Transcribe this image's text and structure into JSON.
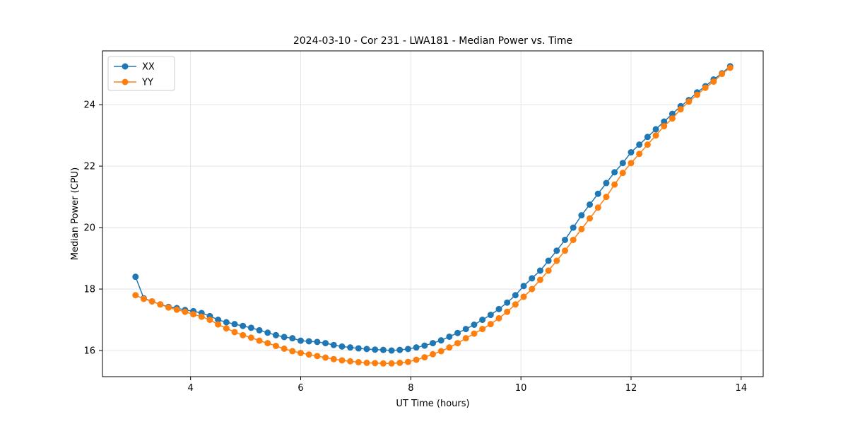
{
  "chart_data": {
    "type": "line",
    "title": "2024-03-10 - Cor 231 - LWA181 - Median Power vs. Time",
    "xlabel": "UT Time (hours)",
    "ylabel": "Median Power (CPU)",
    "xlim": [
      2.4,
      14.4
    ],
    "ylim": [
      15.15,
      25.75
    ],
    "xticks": [
      4,
      6,
      8,
      10,
      12,
      14
    ],
    "yticks": [
      16,
      18,
      20,
      22,
      24
    ],
    "grid": true,
    "legend_position": "upper left",
    "x": [
      3.0,
      3.15,
      3.3,
      3.45,
      3.6,
      3.75,
      3.9,
      4.05,
      4.2,
      4.35,
      4.5,
      4.65,
      4.8,
      4.95,
      5.1,
      5.25,
      5.4,
      5.55,
      5.7,
      5.85,
      6.0,
      6.15,
      6.3,
      6.45,
      6.6,
      6.75,
      6.9,
      7.05,
      7.2,
      7.35,
      7.5,
      7.65,
      7.8,
      7.95,
      8.1,
      8.25,
      8.4,
      8.55,
      8.7,
      8.85,
      9.0,
      9.15,
      9.3,
      9.45,
      9.6,
      9.75,
      9.9,
      10.05,
      10.2,
      10.35,
      10.5,
      10.65,
      10.8,
      10.95,
      11.1,
      11.25,
      11.4,
      11.55,
      11.7,
      11.85,
      12.0,
      12.15,
      12.3,
      12.45,
      12.6,
      12.75,
      12.9,
      13.05,
      13.2,
      13.35,
      13.5,
      13.65,
      13.8
    ],
    "series": [
      {
        "name": "XX",
        "color": "#1f77b4",
        "values": [
          18.4,
          17.7,
          17.6,
          17.5,
          17.42,
          17.38,
          17.32,
          17.28,
          17.22,
          17.12,
          17.0,
          16.92,
          16.86,
          16.8,
          16.74,
          16.66,
          16.58,
          16.5,
          16.44,
          16.4,
          16.32,
          16.3,
          16.28,
          16.24,
          16.18,
          16.13,
          16.1,
          16.07,
          16.05,
          16.03,
          16.02,
          16.0,
          16.02,
          16.05,
          16.1,
          16.16,
          16.24,
          16.33,
          16.45,
          16.57,
          16.7,
          16.84,
          17.0,
          17.16,
          17.35,
          17.56,
          17.8,
          18.1,
          18.35,
          18.6,
          18.92,
          19.25,
          19.6,
          20.0,
          20.4,
          20.75,
          21.1,
          21.45,
          21.8,
          22.1,
          22.45,
          22.7,
          22.95,
          23.2,
          23.45,
          23.7,
          23.95,
          24.15,
          24.4,
          24.6,
          24.82,
          25.02,
          25.25
        ]
      },
      {
        "name": "YY",
        "color": "#ff7f0e",
        "values": [
          17.8,
          17.68,
          17.6,
          17.5,
          17.4,
          17.33,
          17.26,
          17.18,
          17.1,
          17.0,
          16.85,
          16.72,
          16.6,
          16.5,
          16.42,
          16.32,
          16.24,
          16.15,
          16.06,
          15.98,
          15.92,
          15.87,
          15.82,
          15.77,
          15.72,
          15.68,
          15.65,
          15.62,
          15.6,
          15.59,
          15.58,
          15.58,
          15.6,
          15.63,
          15.7,
          15.78,
          15.88,
          15.98,
          16.1,
          16.24,
          16.4,
          16.55,
          16.7,
          16.86,
          17.05,
          17.26,
          17.5,
          17.75,
          18.0,
          18.3,
          18.6,
          18.92,
          19.25,
          19.6,
          19.95,
          20.3,
          20.65,
          21.0,
          21.4,
          21.78,
          22.1,
          22.4,
          22.7,
          23.0,
          23.3,
          23.55,
          23.85,
          24.1,
          24.32,
          24.55,
          24.75,
          25.0,
          25.2
        ]
      }
    ]
  },
  "style": {
    "grid_color": "#dddddd",
    "axis_color": "#000000",
    "legend_border_color": "#cccccc",
    "background": "#ffffff"
  }
}
